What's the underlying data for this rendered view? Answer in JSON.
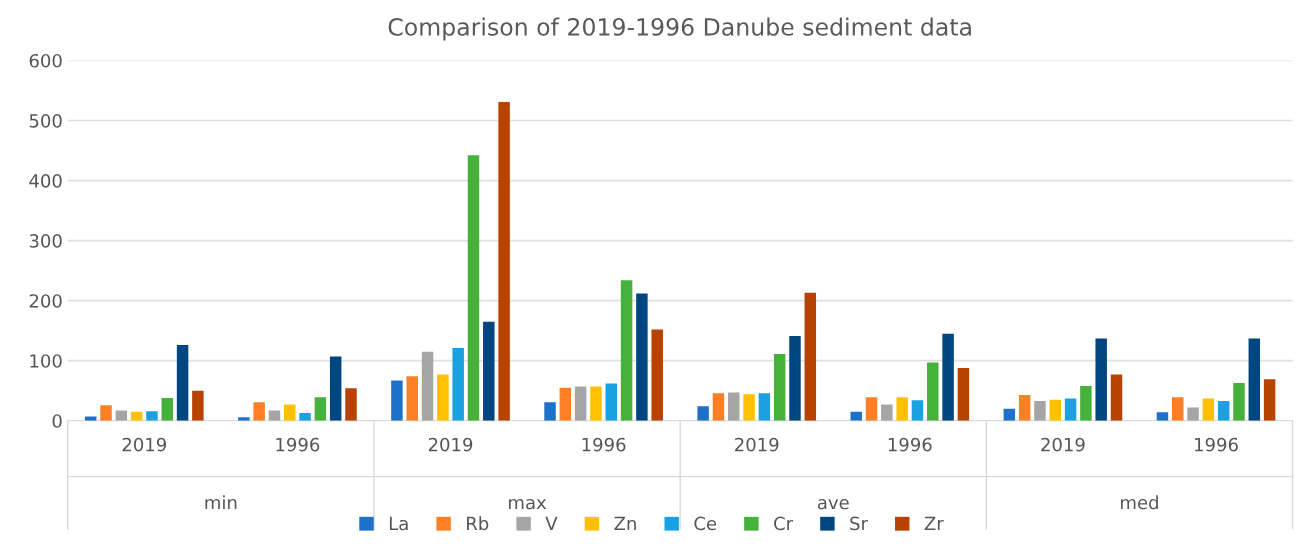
{
  "chart_data": {
    "type": "bar",
    "title": "Comparison of 2019-1996 Danube sediment data",
    "categories": [
      "2019",
      "1996",
      "2019",
      "1996",
      "2019",
      "1996",
      "2019",
      "1996"
    ],
    "annotations": [
      "min",
      "max",
      "ave",
      "med"
    ],
    "ylim": [
      0,
      600
    ],
    "yticks": [
      0,
      100,
      200,
      300,
      400,
      500,
      600
    ],
    "grid": "y",
    "legend": "bottom",
    "series": [
      {
        "name": "La",
        "color": "#1f70c8",
        "values": [
          7,
          6,
          67,
          31,
          24,
          15,
          20,
          14
        ]
      },
      {
        "name": "Rb",
        "color": "#ff7f27",
        "values": [
          26,
          31,
          74,
          55,
          46,
          39,
          43,
          39
        ]
      },
      {
        "name": "V",
        "color": "#a5a5a5",
        "values": [
          17,
          17,
          115,
          57,
          47,
          27,
          33,
          22
        ]
      },
      {
        "name": "Zn",
        "color": "#ffc000",
        "values": [
          15,
          27,
          77,
          57,
          44,
          39,
          35,
          37
        ]
      },
      {
        "name": "Ce",
        "color": "#1ba1e2",
        "values": [
          16,
          13,
          121,
          62,
          46,
          34,
          37,
          33
        ]
      },
      {
        "name": "Cr",
        "color": "#46b13b",
        "values": [
          38,
          39,
          442,
          234,
          111,
          97,
          58,
          63
        ]
      },
      {
        "name": "Sr",
        "color": "#004680",
        "values": [
          126,
          107,
          165,
          212,
          141,
          145,
          137,
          137
        ]
      },
      {
        "name": "Zr",
        "color": "#b84300",
        "values": [
          50,
          54,
          531,
          152,
          213,
          88,
          77,
          69
        ]
      }
    ]
  }
}
